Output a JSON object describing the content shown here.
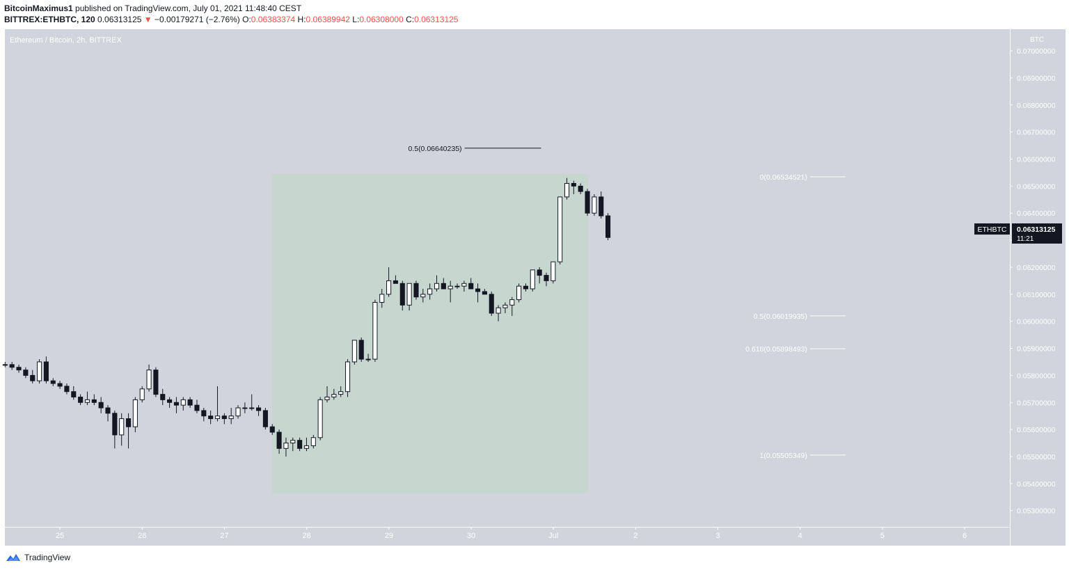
{
  "header": {
    "author": "BitcoinMaximus1",
    "published_text": "published on TradingView.com, July 01, 2021 11:48:40 CEST",
    "symbol": "BITTREX:ETHBTC, 120",
    "last": "0.06313125",
    "down_arrow": "▼",
    "change": "−0.00179271 (−2.76%)",
    "o_label": "O:",
    "o_value": "0.06383374",
    "h_label": "H:",
    "h_value": "0.06389942",
    "l_label": "L:",
    "l_value": "0.06308000",
    "c_label": "C:",
    "c_value": "0.06313125"
  },
  "chart_title": "Ethereum / Bitcoin, 2h, BITTREX",
  "axis_unit": "BTC",
  "price_tag": {
    "symbol": "ETHBTC",
    "price": "0.06313125",
    "countdown": "11:21"
  },
  "footer": {
    "brand": "TradingView",
    "logo_icon": "tradingview-logo-icon"
  },
  "colors": {
    "background": "#d1d4dc",
    "highlight": "#c8d6d0",
    "bull": "#ffffff",
    "bear": "#131722",
    "down": "#ef5350"
  },
  "chart_data": {
    "type": "candlestick",
    "title": "Ethereum / Bitcoin, 2h, BITTREX",
    "ylim": [
      0.0524,
      0.0708
    ],
    "y_ticks": [
      "0.05300000",
      "0.05400000",
      "0.05500000",
      "0.05600000",
      "0.05700000",
      "0.05800000",
      "0.05900000",
      "0.06000000",
      "0.06100000",
      "0.06200000",
      "0.06300000",
      "0.06400000",
      "0.06500000",
      "0.06600000",
      "0.06700000",
      "0.06800000",
      "0.06900000",
      "0.07000000"
    ],
    "x_ticks": [
      "25",
      "26",
      "27",
      "28",
      "29",
      "30",
      "Jul",
      "2",
      "3",
      "4",
      "5",
      "6"
    ],
    "x_tick_days": [
      0,
      1,
      2,
      3,
      4,
      5,
      6,
      7,
      8,
      9,
      10,
      11
    ],
    "x_range_days": [
      -0.67,
      11.55
    ],
    "candle_start_day": -0.667,
    "candle_step_days": 0.0833,
    "candles": [
      [
        0.0584,
        0.0585,
        0.0583,
        0.0584
      ],
      [
        0.0584,
        0.0585,
        0.0582,
        0.0583
      ],
      [
        0.0583,
        0.0584,
        0.0581,
        0.0582
      ],
      [
        0.0582,
        0.0583,
        0.0579,
        0.058
      ],
      [
        0.058,
        0.0582,
        0.0577,
        0.0578
      ],
      [
        0.0578,
        0.0586,
        0.0577,
        0.0585
      ],
      [
        0.0585,
        0.0587,
        0.0577,
        0.0578
      ],
      [
        0.0578,
        0.0579,
        0.0576,
        0.0577
      ],
      [
        0.0577,
        0.0578,
        0.0575,
        0.0576
      ],
      [
        0.0576,
        0.0577,
        0.0573,
        0.0574
      ],
      [
        0.0574,
        0.0576,
        0.0571,
        0.0572
      ],
      [
        0.0572,
        0.0573,
        0.0569,
        0.057
      ],
      [
        0.057,
        0.0574,
        0.0569,
        0.0571
      ],
      [
        0.0571,
        0.0573,
        0.0569,
        0.057
      ],
      [
        0.057,
        0.0572,
        0.0566,
        0.0568
      ],
      [
        0.0568,
        0.0569,
        0.0563,
        0.0566
      ],
      [
        0.0566,
        0.0567,
        0.0553,
        0.0558
      ],
      [
        0.0558,
        0.0566,
        0.0554,
        0.0564
      ],
      [
        0.0564,
        0.0566,
        0.0553,
        0.0561
      ],
      [
        0.0561,
        0.0572,
        0.0559,
        0.0571
      ],
      [
        0.0571,
        0.0576,
        0.057,
        0.0575
      ],
      [
        0.0575,
        0.0584,
        0.0574,
        0.0582
      ],
      [
        0.0582,
        0.0583,
        0.0572,
        0.0573
      ],
      [
        0.0573,
        0.0575,
        0.0569,
        0.0571
      ],
      [
        0.0571,
        0.0572,
        0.0568,
        0.057
      ],
      [
        0.057,
        0.0572,
        0.0566,
        0.0569
      ],
      [
        0.0569,
        0.0572,
        0.0567,
        0.0571
      ],
      [
        0.0571,
        0.0572,
        0.0568,
        0.0569
      ],
      [
        0.0569,
        0.0571,
        0.0566,
        0.0567
      ],
      [
        0.0567,
        0.0568,
        0.0563,
        0.0565
      ],
      [
        0.0565,
        0.0567,
        0.0562,
        0.0564
      ],
      [
        0.0564,
        0.0576,
        0.0563,
        0.0565
      ],
      [
        0.0565,
        0.0566,
        0.0562,
        0.0564
      ],
      [
        0.0564,
        0.0568,
        0.0562,
        0.0565
      ],
      [
        0.0565,
        0.0569,
        0.0564,
        0.0568
      ],
      [
        0.0568,
        0.057,
        0.0566,
        0.0568
      ],
      [
        0.0568,
        0.0573,
        0.0567,
        0.0568
      ],
      [
        0.0568,
        0.0569,
        0.0565,
        0.0567
      ],
      [
        0.0567,
        0.0568,
        0.056,
        0.0561
      ],
      [
        0.0561,
        0.0562,
        0.0558,
        0.0559
      ],
      [
        0.0559,
        0.056,
        0.0551,
        0.0553
      ],
      [
        0.0553,
        0.0557,
        0.055,
        0.0555
      ],
      [
        0.0555,
        0.0557,
        0.0552,
        0.0556
      ],
      [
        0.0556,
        0.0557,
        0.0552,
        0.0553
      ],
      [
        0.0553,
        0.0557,
        0.0552,
        0.0554
      ],
      [
        0.0554,
        0.0558,
        0.0553,
        0.0557
      ],
      [
        0.0557,
        0.0572,
        0.0556,
        0.0571
      ],
      [
        0.0571,
        0.0576,
        0.057,
        0.0572
      ],
      [
        0.0572,
        0.0575,
        0.0571,
        0.0573
      ],
      [
        0.0573,
        0.0576,
        0.0572,
        0.0574
      ],
      [
        0.0574,
        0.0586,
        0.0572,
        0.0585
      ],
      [
        0.0585,
        0.0593,
        0.0584,
        0.0593
      ],
      [
        0.0593,
        0.0594,
        0.0585,
        0.0586
      ],
      [
        0.0586,
        0.0588,
        0.0585,
        0.0586
      ],
      [
        0.0586,
        0.0608,
        0.0585,
        0.0607
      ],
      [
        0.0607,
        0.0612,
        0.0605,
        0.061
      ],
      [
        0.061,
        0.062,
        0.0609,
        0.0615
      ],
      [
        0.0615,
        0.0617,
        0.0614,
        0.0614
      ],
      [
        0.0614,
        0.0615,
        0.0604,
        0.0606
      ],
      [
        0.0606,
        0.0613,
        0.0604,
        0.0614
      ],
      [
        0.0614,
        0.0615,
        0.0608,
        0.0609
      ],
      [
        0.0609,
        0.0612,
        0.0607,
        0.061
      ],
      [
        0.061,
        0.0614,
        0.0608,
        0.0612
      ],
      [
        0.0612,
        0.0617,
        0.0611,
        0.0614
      ],
      [
        0.0614,
        0.0616,
        0.0612,
        0.0612
      ],
      [
        0.0612,
        0.0615,
        0.0607,
        0.0613
      ],
      [
        0.0613,
        0.0614,
        0.0612,
        0.0613
      ],
      [
        0.0613,
        0.0615,
        0.0611,
        0.0614
      ],
      [
        0.0614,
        0.0616,
        0.0612,
        0.0612
      ],
      [
        0.0612,
        0.0614,
        0.0607,
        0.0611
      ],
      [
        0.0611,
        0.0612,
        0.061,
        0.061
      ],
      [
        0.061,
        0.0611,
        0.0602,
        0.0603
      ],
      [
        0.0603,
        0.0606,
        0.06,
        0.0605
      ],
      [
        0.0605,
        0.0607,
        0.0603,
        0.0606
      ],
      [
        0.0606,
        0.0609,
        0.0602,
        0.0608
      ],
      [
        0.0608,
        0.0614,
        0.0607,
        0.0613
      ],
      [
        0.0613,
        0.0614,
        0.0611,
        0.0612
      ],
      [
        0.0612,
        0.0619,
        0.0611,
        0.0619
      ],
      [
        0.0619,
        0.062,
        0.0614,
        0.0617
      ],
      [
        0.0617,
        0.0618,
        0.0613,
        0.0615
      ],
      [
        0.0615,
        0.0622,
        0.0614,
        0.0622
      ],
      [
        0.0622,
        0.0646,
        0.0621,
        0.0646
      ],
      [
        0.0646,
        0.0653,
        0.0645,
        0.0651
      ],
      [
        0.0651,
        0.0652,
        0.0647,
        0.065
      ],
      [
        0.065,
        0.0651,
        0.0647,
        0.0648
      ],
      [
        0.0648,
        0.0649,
        0.0639,
        0.064
      ],
      [
        0.064,
        0.0647,
        0.0639,
        0.0646
      ],
      [
        0.0646,
        0.0648,
        0.0638,
        0.0639
      ],
      [
        0.0639,
        0.064,
        0.063,
        0.0631
      ]
    ],
    "highlight_box": {
      "x_start_day": 2.58,
      "x_end_day": 6.42,
      "y_high": 0.06545,
      "y_low": 0.05362
    },
    "fib_levels": [
      {
        "label": "0.5(0.06640235)",
        "value": 0.06640235,
        "x_start_day": 4.92,
        "x_end_day": 5.85
      },
      {
        "label": "0(0.06534521)",
        "value": 0.06534521,
        "x_start_day": 9.12,
        "x_end_day": 9.55
      },
      {
        "label": "0.5(0.06019935)",
        "value": 0.06019935,
        "x_start_day": 9.12,
        "x_end_day": 9.55
      },
      {
        "label": "0.618(0.05898493)",
        "value": 0.05898493,
        "x_start_day": 9.12,
        "x_end_day": 9.55
      },
      {
        "label": "1(0.05505349)",
        "value": 0.05505349,
        "x_start_day": 9.12,
        "x_end_day": 9.55
      }
    ]
  }
}
